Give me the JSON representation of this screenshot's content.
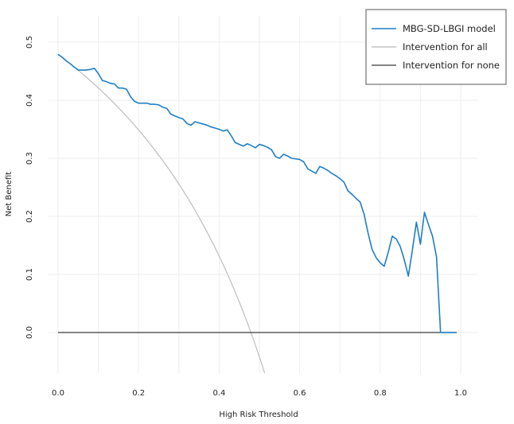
{
  "chart_data": {
    "type": "line",
    "title": "",
    "xlabel": "High Risk Threshold",
    "ylabel": "Net Benefit",
    "xlim": [
      0,
      1.0
    ],
    "ylim": [
      -0.07,
      0.5
    ],
    "grid": true,
    "legend_position": "top-right",
    "x_ticks": [
      "0.0",
      "0.2",
      "0.4",
      "0.6",
      "0.8",
      "1.0"
    ],
    "y_ticks": [
      "0.0",
      "0.1",
      "0.2",
      "0.3",
      "0.4",
      "0.5"
    ],
    "series": [
      {
        "name": "MBG-SD-LBGI model",
        "color": "#1f7fc6",
        "points": [
          [
            0.0,
            0.479
          ],
          [
            0.01,
            0.474
          ],
          [
            0.02,
            0.468
          ],
          [
            0.03,
            0.463
          ],
          [
            0.04,
            0.457
          ],
          [
            0.05,
            0.452
          ],
          [
            0.06,
            0.452
          ],
          [
            0.07,
            0.452
          ],
          [
            0.08,
            0.453
          ],
          [
            0.09,
            0.455
          ],
          [
            0.1,
            0.446
          ],
          [
            0.11,
            0.434
          ],
          [
            0.12,
            0.432
          ],
          [
            0.13,
            0.429
          ],
          [
            0.14,
            0.428
          ],
          [
            0.15,
            0.421
          ],
          [
            0.16,
            0.421
          ],
          [
            0.17,
            0.419
          ],
          [
            0.18,
            0.406
          ],
          [
            0.19,
            0.398
          ],
          [
            0.2,
            0.395
          ],
          [
            0.21,
            0.395
          ],
          [
            0.22,
            0.395
          ],
          [
            0.23,
            0.393
          ],
          [
            0.24,
            0.393
          ],
          [
            0.25,
            0.392
          ],
          [
            0.26,
            0.388
          ],
          [
            0.27,
            0.386
          ],
          [
            0.28,
            0.376
          ],
          [
            0.29,
            0.373
          ],
          [
            0.3,
            0.37
          ],
          [
            0.31,
            0.368
          ],
          [
            0.32,
            0.36
          ],
          [
            0.33,
            0.357
          ],
          [
            0.34,
            0.363
          ],
          [
            0.35,
            0.361
          ],
          [
            0.36,
            0.359
          ],
          [
            0.37,
            0.357
          ],
          [
            0.38,
            0.354
          ],
          [
            0.39,
            0.352
          ],
          [
            0.4,
            0.35
          ],
          [
            0.41,
            0.347
          ],
          [
            0.42,
            0.349
          ],
          [
            0.43,
            0.339
          ],
          [
            0.44,
            0.327
          ],
          [
            0.45,
            0.324
          ],
          [
            0.46,
            0.321
          ],
          [
            0.47,
            0.325
          ],
          [
            0.48,
            0.322
          ],
          [
            0.49,
            0.318
          ],
          [
            0.5,
            0.324
          ],
          [
            0.51,
            0.322
          ],
          [
            0.52,
            0.319
          ],
          [
            0.53,
            0.315
          ],
          [
            0.54,
            0.303
          ],
          [
            0.55,
            0.3
          ],
          [
            0.56,
            0.307
          ],
          [
            0.57,
            0.304
          ],
          [
            0.58,
            0.3
          ],
          [
            0.59,
            0.299
          ],
          [
            0.6,
            0.298
          ],
          [
            0.61,
            0.294
          ],
          [
            0.62,
            0.282
          ],
          [
            0.63,
            0.278
          ],
          [
            0.64,
            0.274
          ],
          [
            0.65,
            0.286
          ],
          [
            0.66,
            0.283
          ],
          [
            0.67,
            0.279
          ],
          [
            0.68,
            0.274
          ],
          [
            0.69,
            0.27
          ],
          [
            0.7,
            0.265
          ],
          [
            0.71,
            0.259
          ],
          [
            0.72,
            0.244
          ],
          [
            0.73,
            0.238
          ],
          [
            0.74,
            0.231
          ],
          [
            0.75,
            0.225
          ],
          [
            0.76,
            0.204
          ],
          [
            0.77,
            0.171
          ],
          [
            0.78,
            0.143
          ],
          [
            0.79,
            0.129
          ],
          [
            0.8,
            0.12
          ],
          [
            0.81,
            0.114
          ],
          [
            0.82,
            0.138
          ],
          [
            0.83,
            0.166
          ],
          [
            0.84,
            0.161
          ],
          [
            0.85,
            0.148
          ],
          [
            0.86,
            0.125
          ],
          [
            0.87,
            0.097
          ],
          [
            0.88,
            0.142
          ],
          [
            0.89,
            0.19
          ],
          [
            0.9,
            0.152
          ],
          [
            0.91,
            0.207
          ],
          [
            0.92,
            0.186
          ],
          [
            0.93,
            0.166
          ],
          [
            0.94,
            0.13
          ],
          [
            0.95,
            0.0
          ],
          [
            0.96,
            0.0
          ],
          [
            0.97,
            0.0
          ],
          [
            0.98,
            0.0
          ],
          [
            0.99,
            0.0
          ]
        ]
      },
      {
        "name": "Intervention for all",
        "color": "#b8b8b8",
        "prevalence": 0.479
      },
      {
        "name": "Intervention for none",
        "color": "#3a3a3a",
        "points": [
          [
            0.0,
            0.0
          ],
          [
            0.99,
            0.0
          ]
        ]
      }
    ]
  }
}
